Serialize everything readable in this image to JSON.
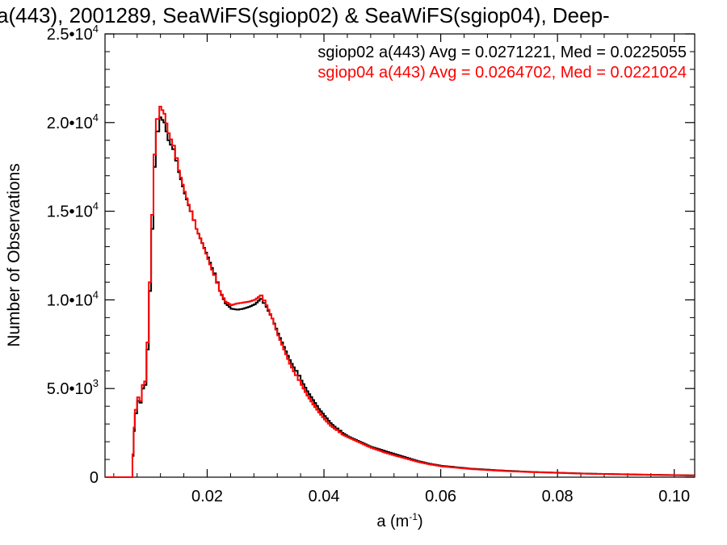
{
  "chart_data": {
    "type": "line",
    "title": "a(443), 2001289, SeaWiFS(sgiop02) & SeaWiFS(sgiop04), Deep-",
    "xlabel_base": "a (m",
    "xlabel_exp": "-1",
    "xlabel_close": ")",
    "ylabel": "Number of Observations",
    "xlim": [
      0.0025,
      0.1035
    ],
    "ylim": [
      0,
      25000
    ],
    "x_ticks": [
      {
        "value": 0.02,
        "label": "0.02"
      },
      {
        "value": 0.04,
        "label": "0.04"
      },
      {
        "value": 0.06,
        "label": "0.06"
      },
      {
        "value": 0.08,
        "label": "0.08"
      },
      {
        "value": 0.1,
        "label": "0.10"
      }
    ],
    "y_ticks": [
      {
        "value": 0,
        "mant": "0",
        "exp": ""
      },
      {
        "value": 5000,
        "mant": "5.0•10",
        "exp": "3"
      },
      {
        "value": 10000,
        "mant": "1.0•10",
        "exp": "4"
      },
      {
        "value": 15000,
        "mant": "1.5•10",
        "exp": "4"
      },
      {
        "value": 20000,
        "mant": "2.0•10",
        "exp": "4"
      },
      {
        "value": 25000,
        "mant": "2.5•10",
        "exp": "4"
      }
    ],
    "legend": [
      {
        "text": "sgiop02 a(443) Avg = 0.0271221, Med = 0.0225055",
        "color": "#000000"
      },
      {
        "text": "sgiop04 a(443) Avg = 0.0264702, Med = 0.0221024",
        "color": "#ff0000"
      }
    ],
    "series": [
      {
        "color": "#000000",
        "points": [
          [
            0.0025,
            0
          ],
          [
            0.0068,
            0
          ],
          [
            0.0072,
            1200
          ],
          [
            0.0074,
            2600
          ],
          [
            0.0076,
            3600
          ],
          [
            0.008,
            4300
          ],
          [
            0.0084,
            4200
          ],
          [
            0.0088,
            5000
          ],
          [
            0.0092,
            5200
          ],
          [
            0.0096,
            7200
          ],
          [
            0.01,
            10500
          ],
          [
            0.0104,
            14000
          ],
          [
            0.0108,
            17500
          ],
          [
            0.0112,
            19500
          ],
          [
            0.0118,
            20300
          ],
          [
            0.0125,
            20000
          ],
          [
            0.0132,
            19000
          ],
          [
            0.014,
            18500
          ],
          [
            0.015,
            17200
          ],
          [
            0.016,
            16000
          ],
          [
            0.017,
            15000
          ],
          [
            0.018,
            14000
          ],
          [
            0.019,
            13200
          ],
          [
            0.02,
            12400
          ],
          [
            0.021,
            11500
          ],
          [
            0.022,
            10500
          ],
          [
            0.023,
            9800
          ],
          [
            0.024,
            9500
          ],
          [
            0.025,
            9450
          ],
          [
            0.026,
            9500
          ],
          [
            0.027,
            9600
          ],
          [
            0.028,
            9750
          ],
          [
            0.029,
            10050
          ],
          [
            0.03,
            9600
          ],
          [
            0.031,
            8950
          ],
          [
            0.032,
            8100
          ],
          [
            0.033,
            7350
          ],
          [
            0.034,
            6600
          ],
          [
            0.035,
            6000
          ],
          [
            0.036,
            5450
          ],
          [
            0.037,
            4850
          ],
          [
            0.038,
            4350
          ],
          [
            0.039,
            3850
          ],
          [
            0.04,
            3450
          ],
          [
            0.041,
            3050
          ],
          [
            0.042,
            2750
          ],
          [
            0.043,
            2500
          ],
          [
            0.044,
            2300
          ],
          [
            0.045,
            2150
          ],
          [
            0.046,
            2000
          ],
          [
            0.047,
            1850
          ],
          [
            0.048,
            1700
          ],
          [
            0.05,
            1500
          ],
          [
            0.052,
            1300
          ],
          [
            0.054,
            1100
          ],
          [
            0.056,
            900
          ],
          [
            0.058,
            750
          ],
          [
            0.06,
            640
          ],
          [
            0.065,
            480
          ],
          [
            0.07,
            380
          ],
          [
            0.075,
            300
          ],
          [
            0.08,
            250
          ],
          [
            0.085,
            200
          ],
          [
            0.09,
            170
          ],
          [
            0.095,
            140
          ],
          [
            0.1,
            115
          ],
          [
            0.1035,
            100
          ]
        ]
      },
      {
        "color": "#ff0000",
        "points": [
          [
            0.0025,
            0
          ],
          [
            0.0068,
            0
          ],
          [
            0.0072,
            1300
          ],
          [
            0.0074,
            2800
          ],
          [
            0.0076,
            3800
          ],
          [
            0.008,
            4500
          ],
          [
            0.0084,
            4300
          ],
          [
            0.0088,
            5200
          ],
          [
            0.0092,
            5400
          ],
          [
            0.0096,
            7600
          ],
          [
            0.01,
            11000
          ],
          [
            0.0104,
            14800
          ],
          [
            0.0108,
            18200
          ],
          [
            0.0112,
            20200
          ],
          [
            0.0118,
            20900
          ],
          [
            0.0125,
            20500
          ],
          [
            0.0132,
            19400
          ],
          [
            0.014,
            18700
          ],
          [
            0.015,
            17300
          ],
          [
            0.016,
            16100
          ],
          [
            0.017,
            15000
          ],
          [
            0.018,
            14000
          ],
          [
            0.019,
            13200
          ],
          [
            0.02,
            12300
          ],
          [
            0.021,
            11400
          ],
          [
            0.022,
            10500
          ],
          [
            0.023,
            9900
          ],
          [
            0.024,
            9700
          ],
          [
            0.025,
            9800
          ],
          [
            0.026,
            9850
          ],
          [
            0.027,
            9900
          ],
          [
            0.028,
            10000
          ],
          [
            0.029,
            10250
          ],
          [
            0.03,
            9700
          ],
          [
            0.031,
            8950
          ],
          [
            0.032,
            8000
          ],
          [
            0.033,
            7200
          ],
          [
            0.034,
            6400
          ],
          [
            0.035,
            5750
          ],
          [
            0.036,
            5200
          ],
          [
            0.037,
            4600
          ],
          [
            0.038,
            4100
          ],
          [
            0.039,
            3650
          ],
          [
            0.04,
            3250
          ],
          [
            0.041,
            2900
          ],
          [
            0.042,
            2650
          ],
          [
            0.043,
            2400
          ],
          [
            0.044,
            2250
          ],
          [
            0.045,
            2100
          ],
          [
            0.046,
            1950
          ],
          [
            0.047,
            1800
          ],
          [
            0.048,
            1650
          ],
          [
            0.05,
            1420
          ],
          [
            0.052,
            1220
          ],
          [
            0.054,
            1040
          ],
          [
            0.056,
            860
          ],
          [
            0.058,
            720
          ],
          [
            0.06,
            610
          ],
          [
            0.065,
            460
          ],
          [
            0.07,
            360
          ],
          [
            0.075,
            290
          ],
          [
            0.08,
            240
          ],
          [
            0.085,
            195
          ],
          [
            0.09,
            165
          ],
          [
            0.095,
            135
          ],
          [
            0.1,
            112
          ],
          [
            0.1035,
            95
          ]
        ]
      }
    ]
  }
}
